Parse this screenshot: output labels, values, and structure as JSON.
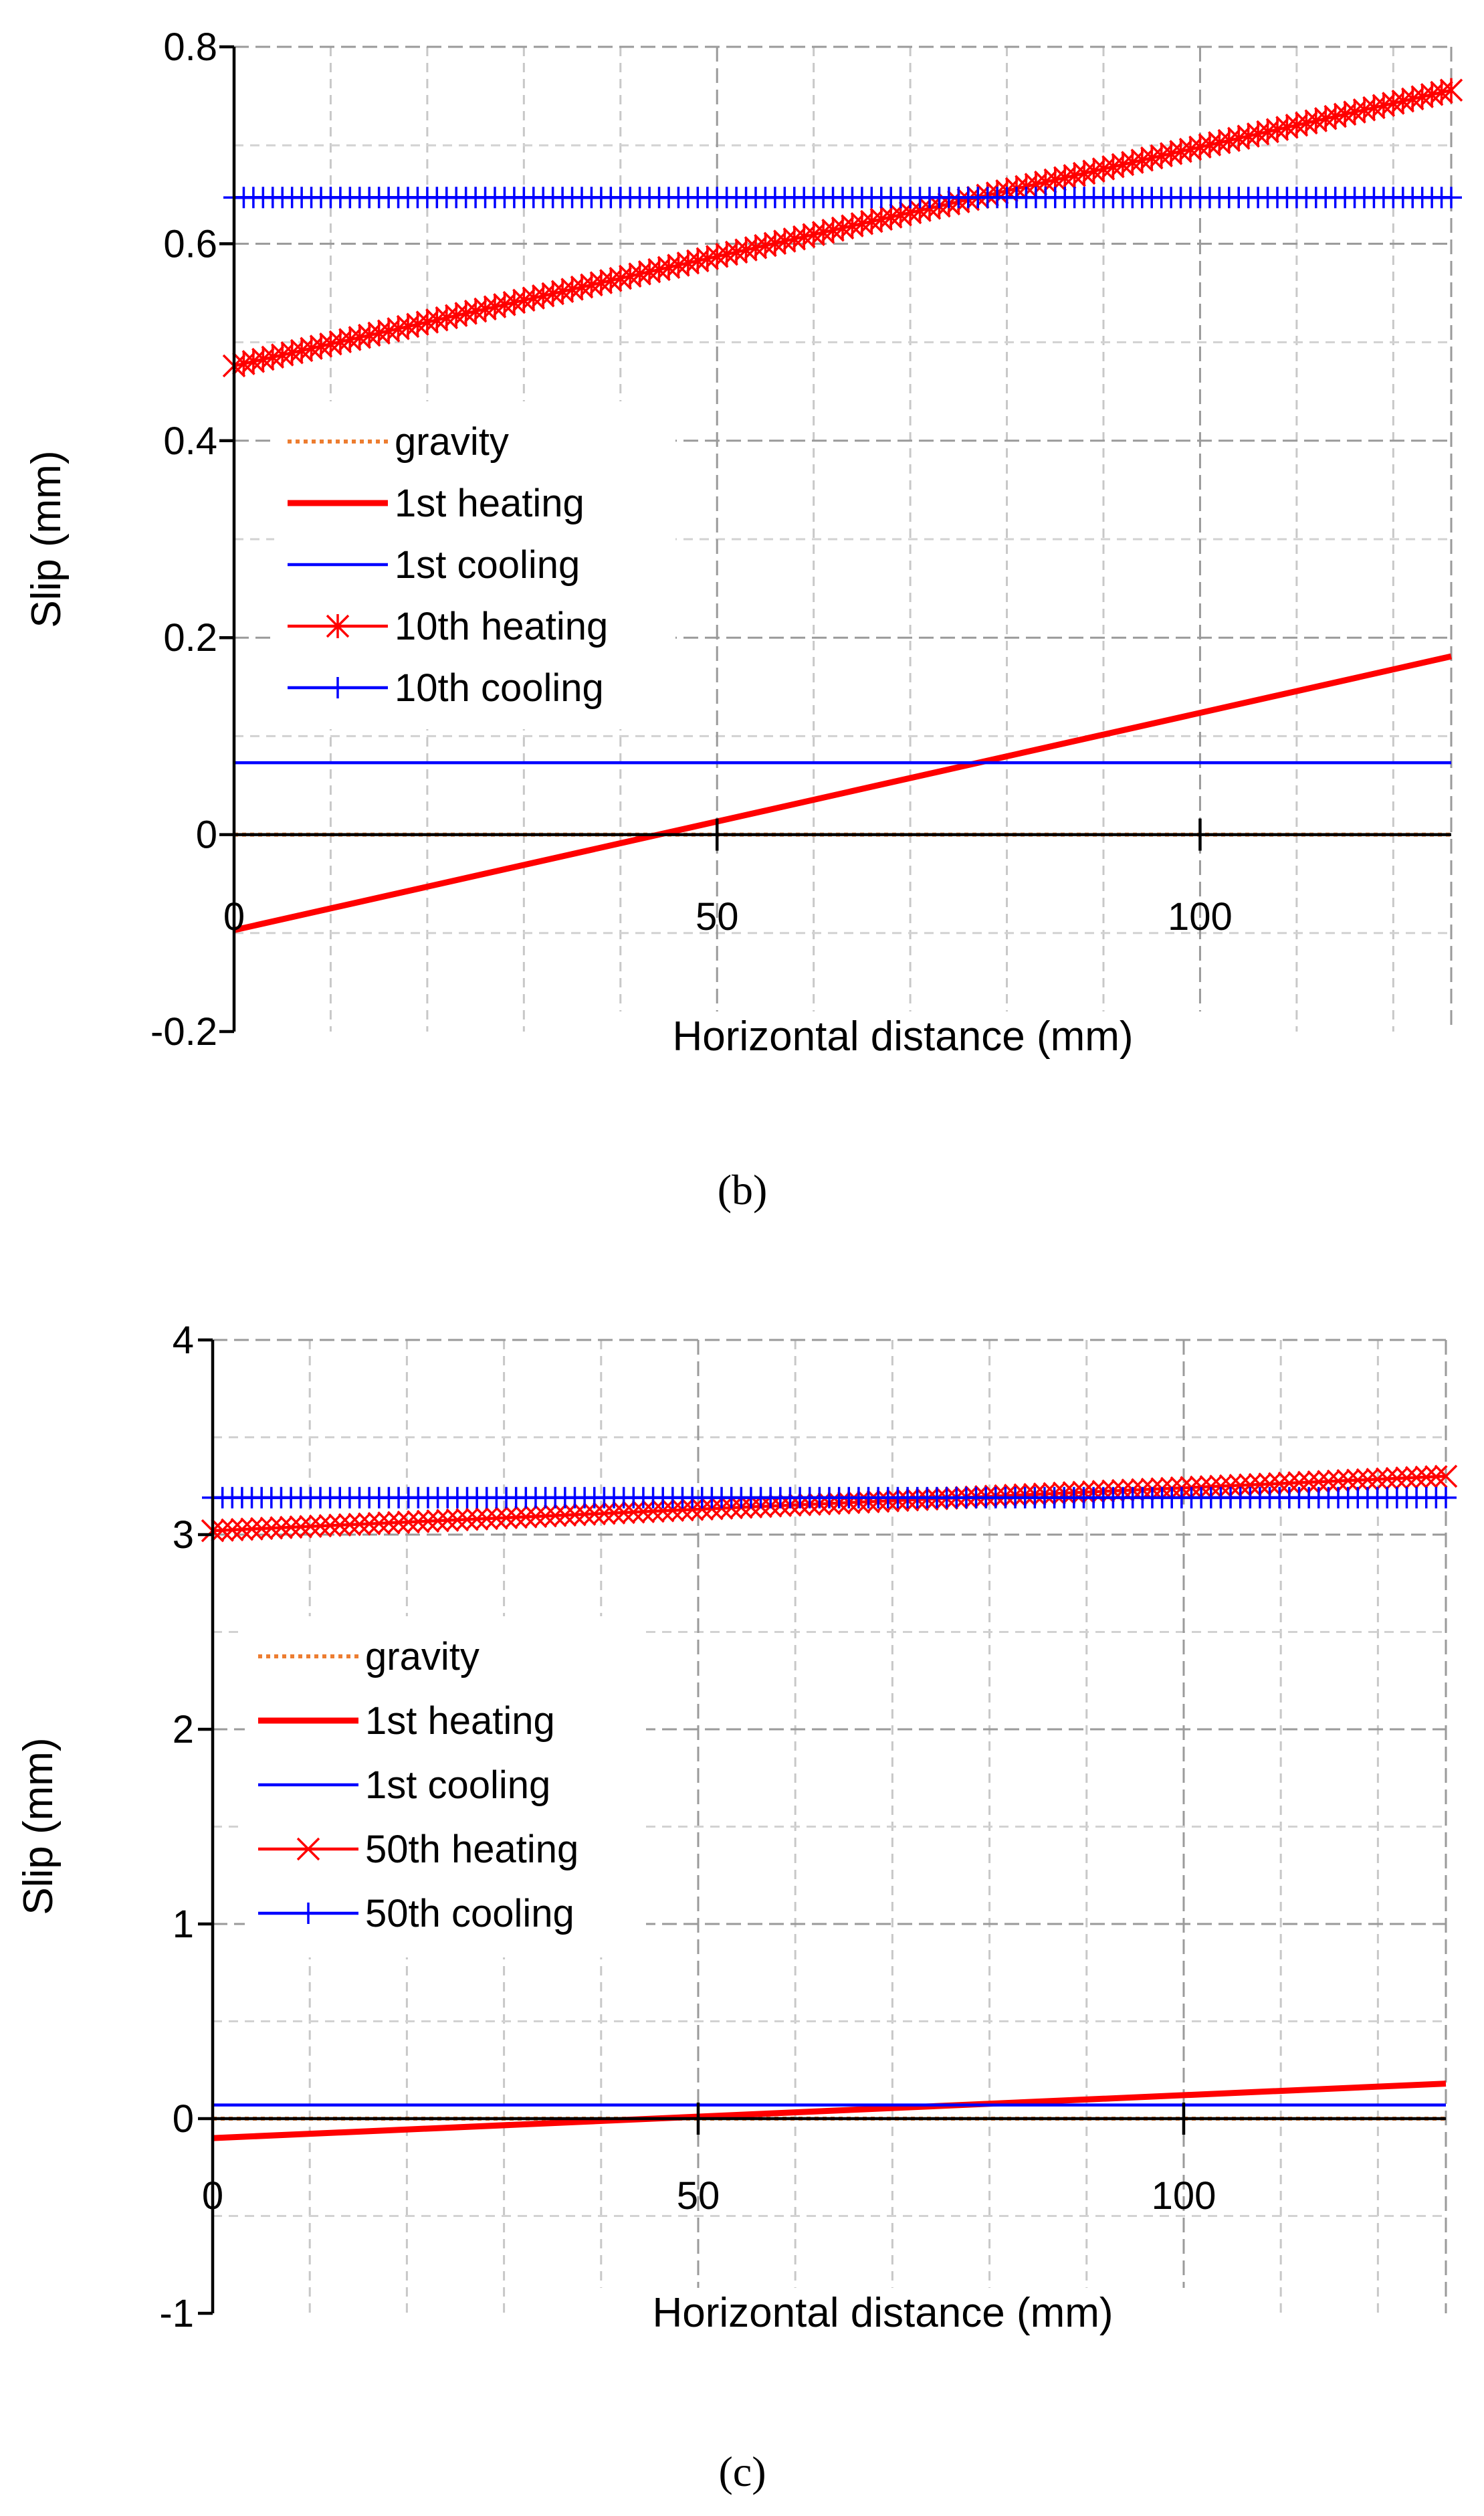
{
  "chart_data": [
    {
      "type": "line",
      "panel": "b",
      "caption": "(b)",
      "xlabel": "Horizontal distance (mm)",
      "ylabel": "Slip (mm)",
      "xlim": [
        0,
        126
      ],
      "ylim": [
        -0.2,
        0.8
      ],
      "xticks": [
        0,
        50,
        100
      ],
      "yticks": [
        -0.2,
        0,
        0.2,
        0.4,
        0.6,
        0.8
      ],
      "xtick_labels": [
        "0",
        "50",
        "100"
      ],
      "ytick_labels": [
        "-0.2",
        "0",
        "0.2",
        "0.4",
        "0.6",
        "0.8"
      ],
      "minor_grid_step": 10,
      "legend_location": "center-left",
      "series": [
        {
          "name": "gravity",
          "style": "dotted",
          "marker": "none",
          "color": "#ED7D31",
          "x": [
            0,
            126
          ],
          "y": [
            0,
            0
          ]
        },
        {
          "name": "1st heating",
          "style": "solid-thick",
          "marker": "none",
          "color": "#FF0000",
          "x": [
            0,
            126
          ],
          "y": [
            -0.097,
            0.181
          ]
        },
        {
          "name": "1st cooling",
          "style": "solid",
          "marker": "none",
          "color": "#0000FF",
          "x": [
            0,
            126
          ],
          "y": [
            0.073,
            0.073
          ]
        },
        {
          "name": "10th heating",
          "style": "solid",
          "marker": "asterisk",
          "color": "#FF0000",
          "x": [
            0,
            126
          ],
          "y": [
            0.476,
            0.756
          ]
        },
        {
          "name": "10th cooling",
          "style": "solid",
          "marker": "plus",
          "color": "#0000FF",
          "x": [
            0,
            126
          ],
          "y": [
            0.647,
            0.647
          ]
        }
      ]
    },
    {
      "type": "line",
      "panel": "c",
      "caption": "(c)",
      "xlabel": "Horizontal distance (mm)",
      "ylabel": "Slip (mm)",
      "xlim": [
        0,
        127
      ],
      "ylim": [
        -1,
        4
      ],
      "xticks": [
        0,
        50,
        100
      ],
      "yticks": [
        -1,
        0,
        1,
        2,
        3,
        4
      ],
      "xtick_labels": [
        "0",
        "50",
        "100"
      ],
      "ytick_labels": [
        "-1",
        "0",
        "1",
        "2",
        "3",
        "4"
      ],
      "minor_grid_step": 10,
      "legend_location": "center-left",
      "series": [
        {
          "name": "gravity",
          "style": "dotted",
          "marker": "none",
          "color": "#ED7D31",
          "x": [
            0,
            127
          ],
          "y": [
            0,
            0
          ]
        },
        {
          "name": "1st heating",
          "style": "solid-thick",
          "marker": "none",
          "color": "#FF0000",
          "x": [
            0,
            127
          ],
          "y": [
            -0.1,
            0.18
          ]
        },
        {
          "name": "1st cooling",
          "style": "solid",
          "marker": "none",
          "color": "#0000FF",
          "x": [
            0,
            127
          ],
          "y": [
            0.07,
            0.07
          ]
        },
        {
          "name": "50th heating",
          "style": "solid",
          "marker": "x",
          "color": "#FF0000",
          "x": [
            0,
            127
          ],
          "y": [
            3.02,
            3.3
          ]
        },
        {
          "name": "50th cooling",
          "style": "solid",
          "marker": "plus",
          "color": "#0000FF",
          "x": [
            0,
            127
          ],
          "y": [
            3.19,
            3.19
          ]
        }
      ]
    }
  ]
}
